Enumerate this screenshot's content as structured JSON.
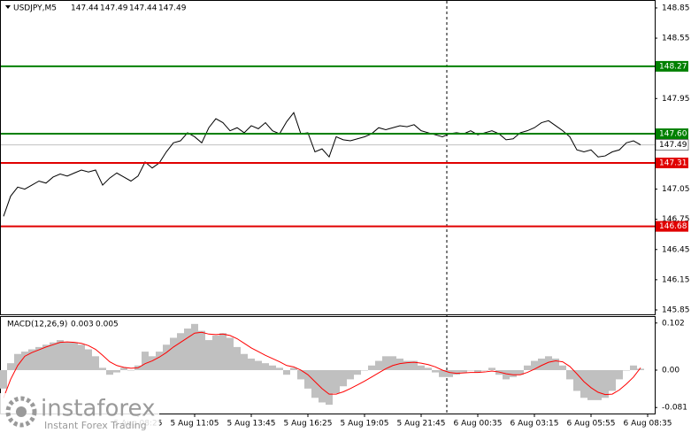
{
  "chart_data": [
    {
      "type": "line",
      "title": "USDJPY,M5",
      "ohlc": [
        147.44,
        147.49,
        147.44,
        147.49
      ],
      "categories": [
        null,
        null,
        null,
        null,
        null,
        null,
        null,
        null,
        null,
        null,
        null,
        null,
        null,
        null,
        null,
        null,
        null,
        null,
        null,
        "5 Aug 08:25",
        null,
        null,
        null,
        null,
        null,
        null,
        null,
        "5 Aug 11:05",
        null,
        null,
        null,
        null,
        null,
        null,
        null,
        "5 Aug 13:45",
        null,
        null,
        null,
        null,
        null,
        null,
        null,
        "5 Aug 16:25",
        null,
        null,
        null,
        null,
        null,
        null,
        null,
        "5 Aug 19:05",
        null,
        null,
        null,
        null,
        null,
        null,
        null,
        "5 Aug 21:45",
        null,
        null,
        null,
        null,
        null,
        null,
        null,
        "6 Aug 00:35",
        null,
        null,
        null,
        null,
        null,
        null,
        null,
        "6 Aug 03:15",
        null,
        null,
        null,
        null,
        null,
        null,
        null,
        "6 Aug 05:55",
        null,
        null,
        null,
        null,
        null,
        null,
        null,
        "6 Aug 08:35"
      ],
      "values": [
        146.78,
        146.98,
        147.07,
        147.05,
        147.09,
        147.13,
        147.11,
        147.17,
        147.2,
        147.18,
        147.21,
        147.24,
        147.22,
        147.24,
        147.09,
        147.16,
        147.21,
        147.17,
        147.13,
        147.18,
        147.32,
        147.26,
        147.31,
        147.42,
        147.51,
        147.53,
        147.61,
        147.57,
        147.51,
        147.66,
        147.75,
        147.71,
        147.63,
        147.66,
        147.61,
        147.68,
        147.65,
        147.71,
        147.63,
        147.6,
        147.72,
        147.81,
        147.6,
        147.61,
        147.42,
        147.45,
        147.37,
        147.57,
        147.54,
        147.53,
        147.55,
        147.57,
        147.6,
        147.66,
        147.64,
        147.66,
        147.68,
        147.67,
        147.69,
        147.63,
        147.61,
        147.59,
        147.57,
        147.6,
        147.61,
        147.6,
        147.63,
        147.59,
        147.61,
        147.63,
        147.6,
        147.54,
        147.55,
        147.61,
        147.63,
        147.66,
        147.71,
        147.73,
        147.68,
        147.63,
        147.57,
        147.44,
        147.42,
        147.44,
        147.37,
        147.38,
        147.42,
        147.44,
        147.51,
        147.53,
        147.49,
        null
      ],
      "color": "#000000",
      "ylim": [
        145.806,
        148.92
      ],
      "yticks": [
        148.85,
        148.55,
        147.95,
        147.05,
        146.75,
        146.45,
        146.15,
        145.85
      ],
      "levels": [
        {
          "value": 148.27,
          "color": "#008000"
        },
        {
          "value": 147.6,
          "label": "147.60",
          "color": "#008000"
        },
        {
          "value": 147.31,
          "color": "#e00000"
        },
        {
          "value": 146.68,
          "color": "#e00000"
        }
      ],
      "last": 147.49
    },
    {
      "type": "macd",
      "title": "MACD(12,26,9)",
      "macd": 0.003,
      "signal_value": 0.005,
      "values": [
        -0.04,
        0.015,
        0.035,
        0.04,
        0.045,
        0.05,
        0.055,
        0.06,
        0.065,
        0.06,
        0.06,
        0.055,
        0.045,
        0.03,
        0.005,
        -0.01,
        -0.005,
        0.005,
        0.0,
        0.01,
        0.04,
        0.03,
        0.04,
        0.055,
        0.07,
        0.08,
        0.09,
        0.1,
        0.085,
        0.065,
        0.075,
        0.08,
        0.07,
        0.05,
        0.035,
        0.025,
        0.02,
        0.015,
        0.01,
        0.005,
        -0.01,
        0.005,
        -0.02,
        -0.04,
        -0.06,
        -0.07,
        -0.075,
        -0.05,
        -0.035,
        -0.02,
        -0.01,
        0.0,
        0.01,
        0.02,
        0.03,
        0.03,
        0.025,
        0.02,
        0.02,
        0.01,
        0.005,
        -0.005,
        -0.015,
        -0.015,
        -0.01,
        -0.005,
        0.0,
        -0.005,
        0.0,
        0.005,
        -0.01,
        -0.02,
        -0.015,
        -0.01,
        0.01,
        0.02,
        0.025,
        0.03,
        0.025,
        0.01,
        -0.02,
        -0.045,
        -0.06,
        -0.065,
        -0.065,
        -0.06,
        -0.045,
        -0.02,
        0.0,
        0.01,
        0.003,
        null
      ],
      "signal": [
        -0.06,
        -0.02,
        0.01,
        0.03,
        0.038,
        0.044,
        0.05,
        0.055,
        0.06,
        0.061,
        0.06,
        0.058,
        0.053,
        0.045,
        0.032,
        0.018,
        0.01,
        0.006,
        0.004,
        0.005,
        0.014,
        0.02,
        0.028,
        0.038,
        0.05,
        0.06,
        0.07,
        0.08,
        0.082,
        0.078,
        0.077,
        0.078,
        0.075,
        0.068,
        0.058,
        0.048,
        0.04,
        0.032,
        0.025,
        0.018,
        0.01,
        0.007,
        0.0,
        -0.01,
        -0.025,
        -0.04,
        -0.052,
        -0.052,
        -0.047,
        -0.04,
        -0.032,
        -0.024,
        -0.015,
        -0.006,
        0.003,
        0.01,
        0.014,
        0.016,
        0.017,
        0.015,
        0.012,
        0.007,
        0.0,
        -0.005,
        -0.007,
        -0.006,
        -0.005,
        -0.005,
        -0.004,
        -0.002,
        -0.004,
        -0.008,
        -0.01,
        -0.01,
        -0.005,
        0.002,
        0.01,
        0.017,
        0.02,
        0.018,
        0.008,
        -0.008,
        -0.025,
        -0.038,
        -0.048,
        -0.053,
        -0.052,
        -0.043,
        -0.03,
        -0.015,
        0.005,
        null
      ],
      "color": "#c0c0c0",
      "signal_color": "#ff0000",
      "ylim": [
        -0.094,
        0.115
      ],
      "yticks": [
        0.102,
        {
          "value": 0,
          "label": "0.00"
        },
        -0.081
      ]
    }
  ],
  "watermark": {
    "brand": "instaforex",
    "tagline": "Instant Forex Trading"
  }
}
